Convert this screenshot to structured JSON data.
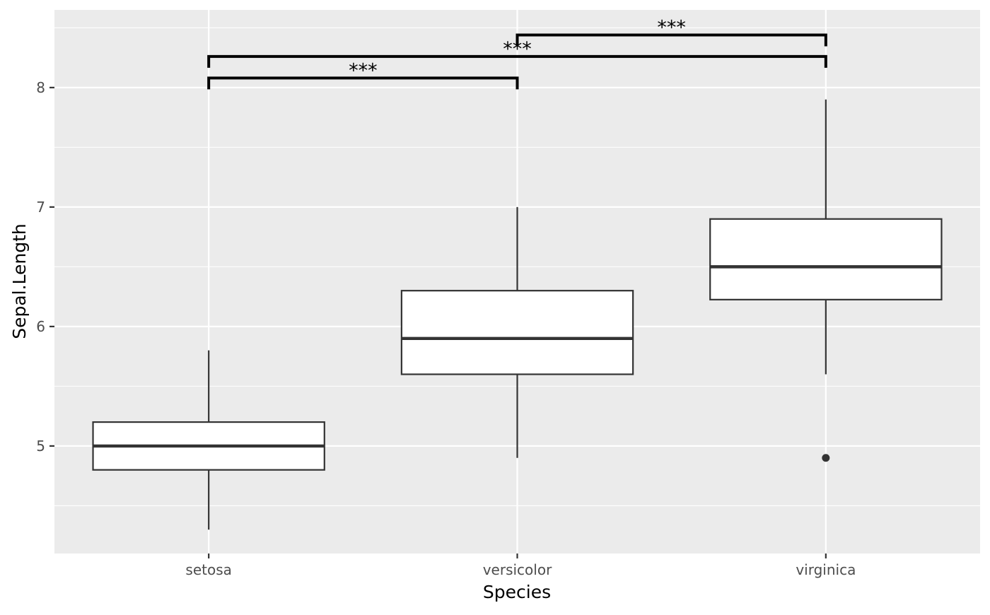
{
  "chart_data": {
    "type": "boxplot",
    "title": "",
    "xlabel": "Species",
    "ylabel": "Sepal.Length",
    "categories": [
      "setosa",
      "versicolor",
      "virginica"
    ],
    "boxes": [
      {
        "category": "setosa",
        "whisker_low": 4.3,
        "q1": 4.8,
        "median": 5.0,
        "q3": 5.2,
        "whisker_high": 5.8,
        "outliers": []
      },
      {
        "category": "versicolor",
        "whisker_low": 4.9,
        "q1": 5.6,
        "median": 5.9,
        "q3": 6.3,
        "whisker_high": 7.0,
        "outliers": []
      },
      {
        "category": "virginica",
        "whisker_low": 5.6,
        "q1": 6.225,
        "median": 6.5,
        "q3": 6.9,
        "whisker_high": 7.9,
        "outliers": [
          4.9
        ]
      }
    ],
    "y_ticks": [
      5,
      6,
      7,
      8
    ],
    "y_tick_labels": [
      "5",
      "6",
      "7",
      "8"
    ],
    "ylim": [
      4.1,
      8.65
    ],
    "grid": true,
    "legend": "none",
    "comparisons": [
      {
        "from": "setosa",
        "to": "versicolor",
        "y": 8.08,
        "label": "***"
      },
      {
        "from": "setosa",
        "to": "virginica",
        "y": 8.26,
        "label": "***"
      },
      {
        "from": "versicolor",
        "to": "virginica",
        "y": 8.44,
        "label": "***"
      }
    ],
    "colors": {
      "panel": "#ebebeb",
      "grid": "#ffffff",
      "box_fill": "#ffffff",
      "box_stroke": "#333333",
      "bracket": "#000000"
    }
  }
}
